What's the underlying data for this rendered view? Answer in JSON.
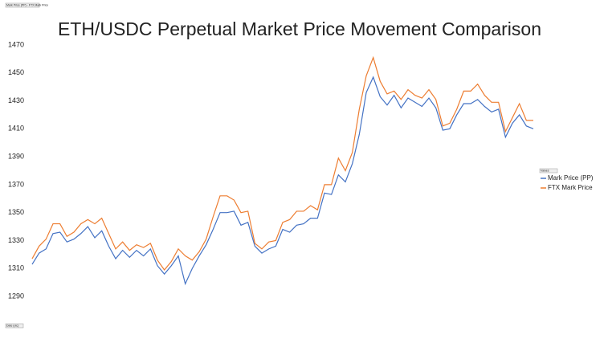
{
  "chart_data": {
    "type": "line",
    "title": "ETH/USDC Perpetual Market Price Movement Comparison",
    "header_note": "Mark Price (PP) - FTX Mark Price",
    "x_label": "Date (utc)",
    "legend_title": "Values",
    "legend": "right",
    "categories": [
      null,
      null,
      null,
      null,
      null,
      null,
      null,
      null,
      null,
      null,
      null,
      null,
      null,
      null,
      null,
      null,
      null,
      null,
      null,
      null,
      null,
      null,
      null,
      null,
      null,
      null,
      null,
      null,
      null,
      null,
      null,
      null,
      null,
      null,
      null,
      null,
      null,
      null,
      null,
      null,
      null,
      null,
      null,
      null,
      null,
      null,
      null,
      null,
      null,
      null,
      null,
      null,
      null,
      null,
      null,
      null,
      null,
      null,
      null,
      null,
      null,
      null,
      null,
      null,
      null,
      null,
      null,
      null,
      null,
      null,
      null,
      null,
      null
    ],
    "series": [
      {
        "name": "Mark Price (PP)",
        "color": "#4472c4",
        "values": [
          1313,
          1321,
          1324,
          1335,
          1336,
          1329,
          1331,
          1335,
          1340,
          1332,
          1337,
          1326,
          1317,
          1323,
          1318,
          1323,
          1319,
          1324,
          1312,
          1306,
          1312,
          1319,
          1299,
          1310,
          1319,
          1327,
          1338,
          1350,
          1350,
          1351,
          1341,
          1343,
          1326,
          1321,
          1324,
          1326,
          1338,
          1336,
          1341,
          1342,
          1346,
          1346,
          1364,
          1363,
          1377,
          1372,
          1385,
          1406,
          1436,
          1447,
          1433,
          1427,
          1434,
          1425,
          1432,
          1429,
          1426,
          1432,
          1425,
          1409,
          1410,
          1420,
          1428,
          1428,
          1431,
          1426,
          1422,
          1424,
          1404,
          1414,
          1420,
          1412,
          1410
        ]
      },
      {
        "name": "FTX Mark Price",
        "color": "#ed7d31",
        "values": [
          1317,
          1326,
          1331,
          1342,
          1342,
          1333,
          1336,
          1342,
          1345,
          1342,
          1346,
          1335,
          1324,
          1329,
          1323,
          1327,
          1325,
          1328,
          1316,
          1309,
          1315,
          1324,
          1319,
          1316,
          1322,
          1331,
          1347,
          1362,
          1362,
          1359,
          1350,
          1351,
          1328,
          1324,
          1329,
          1330,
          1343,
          1345,
          1351,
          1351,
          1355,
          1352,
          1370,
          1370,
          1389,
          1380,
          1393,
          1424,
          1448,
          1461,
          1444,
          1435,
          1437,
          1431,
          1438,
          1434,
          1432,
          1438,
          1431,
          1412,
          1414,
          1424,
          1437,
          1437,
          1442,
          1434,
          1429,
          1429,
          1408,
          1418,
          1428,
          1416,
          1416
        ]
      }
    ],
    "ylim": [
      1290,
      1470
    ],
    "yticks": [
      1290,
      1310,
      1330,
      1350,
      1370,
      1390,
      1410,
      1430,
      1450,
      1470
    ],
    "grid": false
  }
}
